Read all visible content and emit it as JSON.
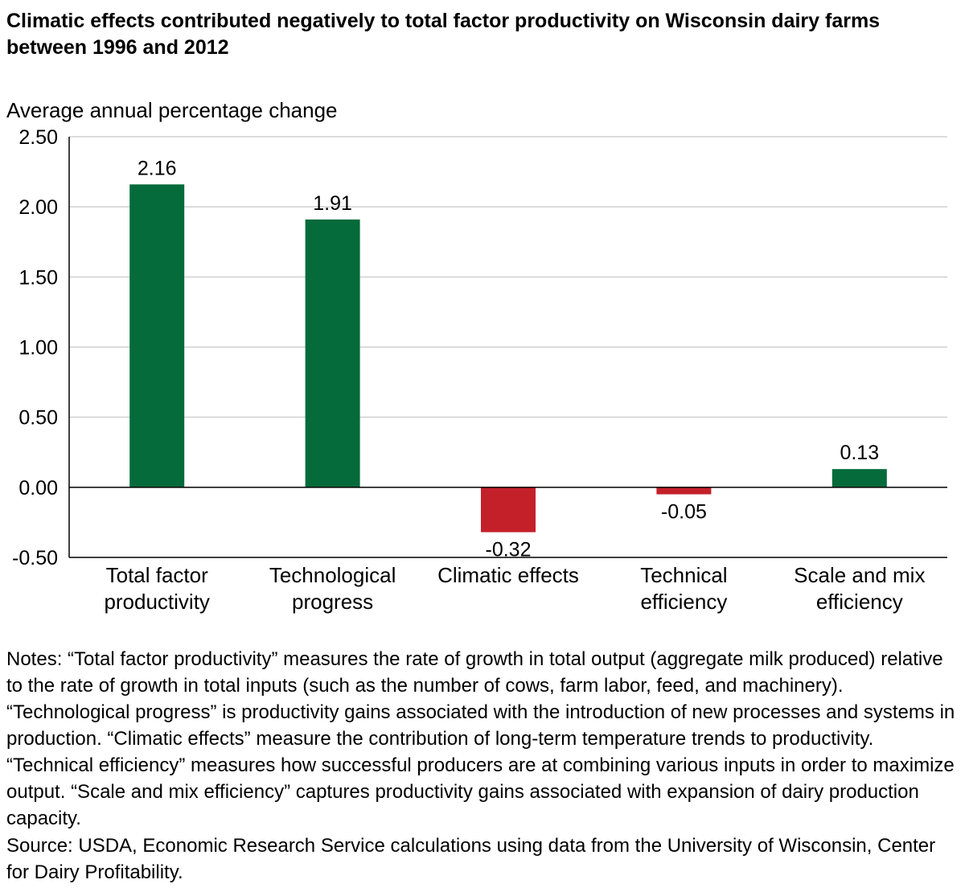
{
  "title": "Climatic effects contributed negatively to total factor productivity on Wisconsin dairy farms between 1996 and 2012",
  "notes": "Notes: “Total factor productivity” measures the rate of growth in total output (aggregate milk produced) relative to the rate of growth in total inputs (such as the number of cows, farm labor, feed, and machinery). “Technological progress” is productivity gains associated with the introduction of new processes and systems in production. “Climatic effects” measure the contribution of long-term temperature trends to productivity. “Technical efficiency” measures how successful producers are at combining various inputs in order to maximize output. “Scale and mix efficiency” captures productivity gains associated with expansion of dairy production capacity.",
  "source": "Source: USDA, Economic Research Service calculations using data from the University of Wisconsin, Center for Dairy Profitability.",
  "chart_data": {
    "type": "bar",
    "title": "Climatic effects contributed negatively to total factor productivity on Wisconsin dairy farms between 1996 and 2012",
    "ylabel": "Average annual percentage change",
    "xlabel": "",
    "ylim": [
      -0.5,
      2.5
    ],
    "yticks": [
      "2.50",
      "2.00",
      "1.50",
      "1.00",
      "0.50",
      "0.00",
      "-0.50"
    ],
    "ytick_values": [
      2.5,
      2.0,
      1.5,
      1.0,
      0.5,
      0.0,
      -0.5
    ],
    "grid": true,
    "categories": [
      [
        "Total factor",
        "productivity"
      ],
      [
        "Technological",
        "progress"
      ],
      [
        "Climatic effects"
      ],
      [
        "Technical",
        "efficiency"
      ],
      [
        "Scale and mix",
        "efficiency"
      ]
    ],
    "values": [
      2.16,
      1.91,
      -0.32,
      -0.05,
      0.13
    ],
    "value_labels": [
      "2.16",
      "1.91",
      "-0.32",
      "-0.05",
      "0.13"
    ],
    "colors": {
      "positive": "#056b3a",
      "negative": "#c4202a",
      "grid": "#d0d0d0",
      "axis": "#000000"
    }
  }
}
